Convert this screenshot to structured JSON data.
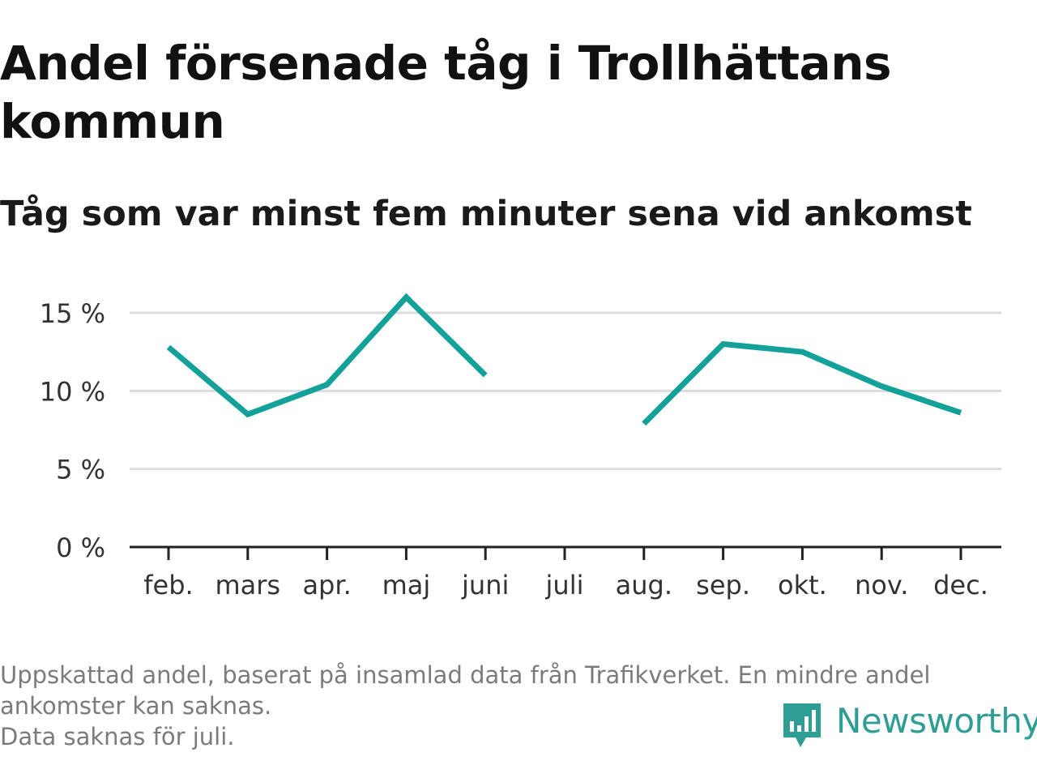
{
  "title": "Andel försenade tåg i Trollhättans kommun",
  "subtitle": "Tåg som var minst fem minuter sena vid ankomst",
  "footnote": {
    "line1": "Uppskattad andel, baserat på insamlad data från Trafikverket. En mindre andel",
    "line2": "ankomster kan saknas.",
    "line3": "Data saknas för juli."
  },
  "brand": {
    "name": "Newsworthy",
    "icon": "newsworthy-logo-icon",
    "color": "#2e9e94"
  },
  "colors": {
    "line": "#13a199",
    "grid": "#dddddd",
    "axis": "#222222",
    "tick_label": "#333333"
  },
  "chart_data": {
    "type": "line",
    "title": "Andel försenade tåg i Trollhättans kommun",
    "subtitle": "Tåg som var minst fem minuter sena vid ankomst",
    "xlabel": "",
    "ylabel": "",
    "categories": [
      "feb.",
      "mars",
      "apr.",
      "maj",
      "juni",
      "juli",
      "aug.",
      "sep.",
      "okt.",
      "nov.",
      "dec."
    ],
    "series": [
      {
        "values": [
          12.8,
          8.5,
          10.4,
          16.0,
          11.0,
          null,
          7.9,
          13.0,
          12.5,
          10.3,
          8.6
        ]
      }
    ],
    "ylim": [
      0,
      15
    ],
    "yticks": [
      0,
      5,
      10,
      15
    ],
    "ytick_labels": [
      "0 %",
      "5 %",
      "10 %",
      "15 %"
    ],
    "grid": true,
    "legend": "none",
    "missing": [
      "juli"
    ]
  }
}
